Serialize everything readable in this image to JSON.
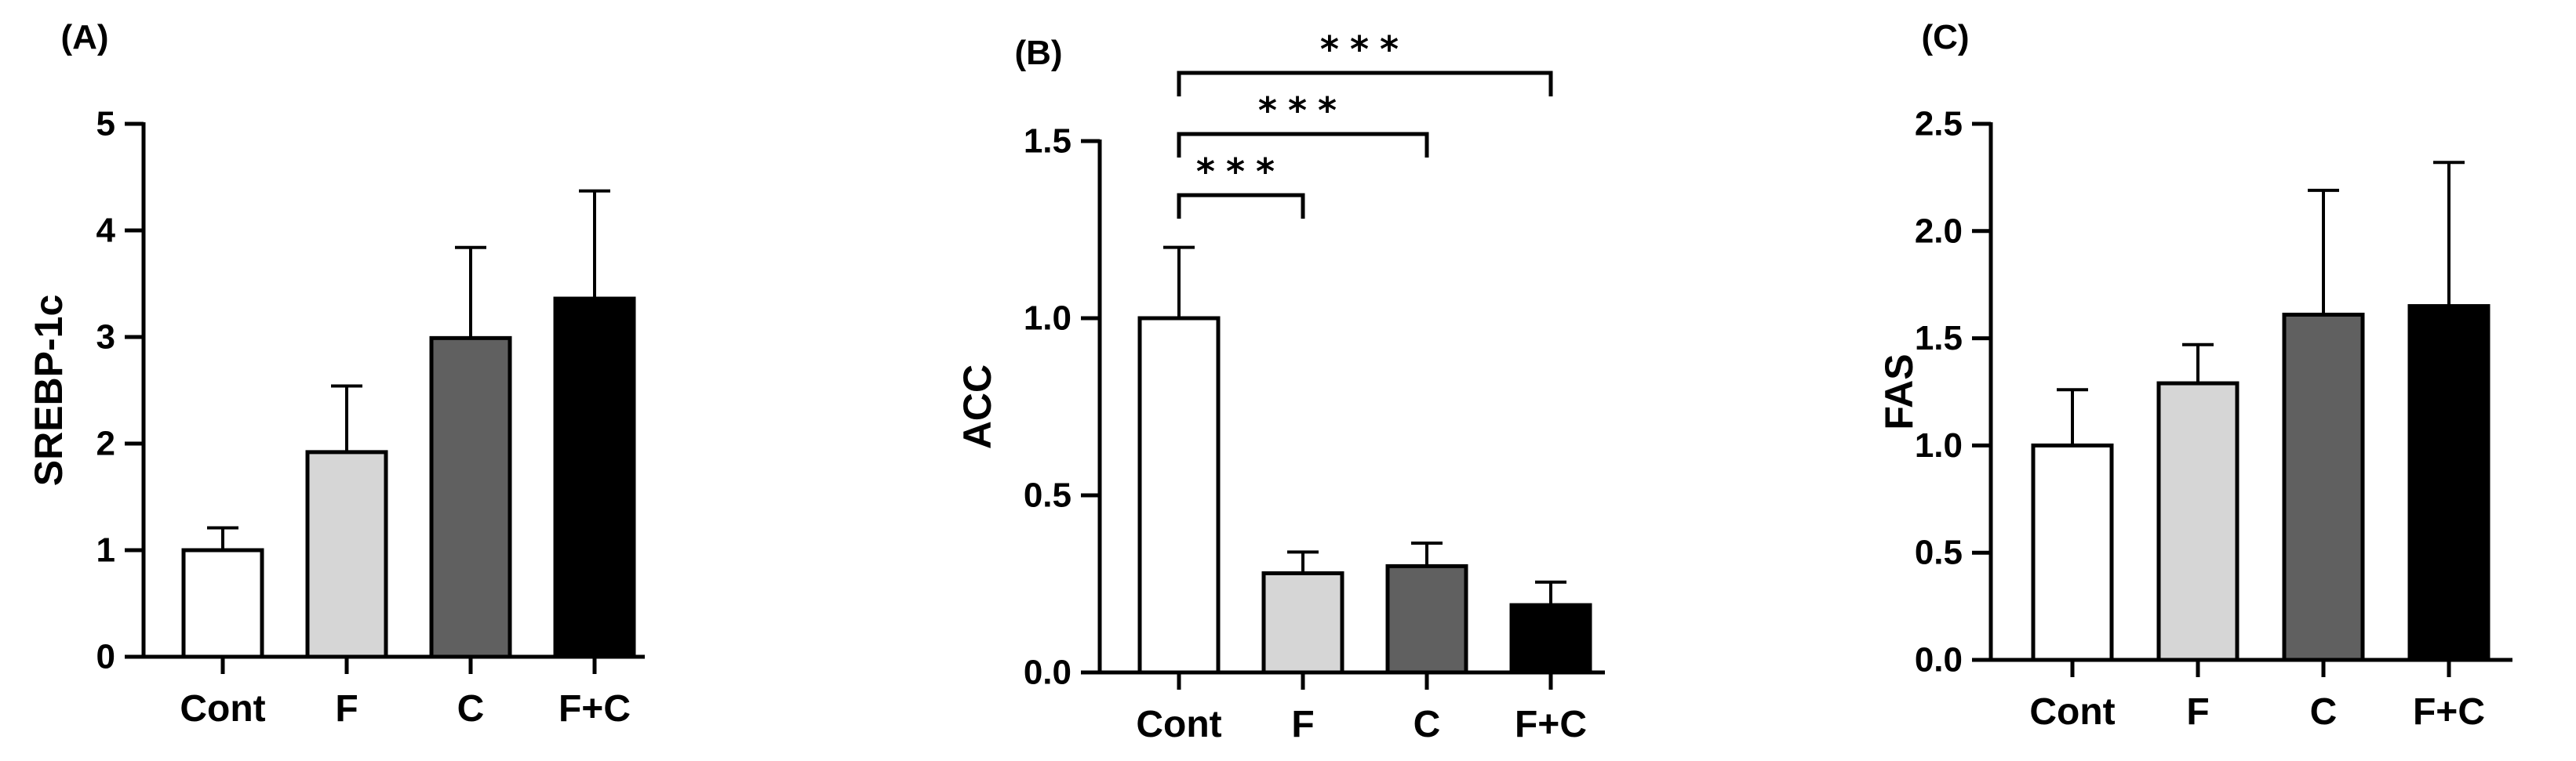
{
  "chart_data": [
    {
      "type": "bar",
      "panel_label": "(A)",
      "title": "",
      "xlabel": "",
      "ylabel": "SREBP-1c",
      "categories": [
        "Cont",
        "F",
        "C",
        "F+C"
      ],
      "values": [
        1.0,
        1.92,
        2.99,
        3.36
      ],
      "errors": [
        0.21,
        0.62,
        0.85,
        1.01
      ],
      "bar_colors": [
        "#ffffff",
        "#d6d6d6",
        "#606060",
        "#000000"
      ],
      "ylim": [
        0,
        5
      ],
      "yticks": [
        0,
        1,
        2,
        3,
        4,
        5
      ],
      "ytick_labels": [
        "0",
        "1",
        "2",
        "3",
        "4",
        "5"
      ],
      "grid": false,
      "significance": []
    },
    {
      "type": "bar",
      "panel_label": "(B)",
      "title": "",
      "xlabel": "",
      "ylabel": "ACC",
      "categories": [
        "Cont",
        "F",
        "C",
        "F+C"
      ],
      "values": [
        1.0,
        0.28,
        0.3,
        0.19
      ],
      "errors": [
        0.2,
        0.06,
        0.065,
        0.065
      ],
      "bar_colors": [
        "#ffffff",
        "#d6d6d6",
        "#606060",
        "#000000"
      ],
      "ylim": [
        0,
        1.5
      ],
      "yticks": [
        0,
        0.5,
        1.0,
        1.5
      ],
      "ytick_labels": [
        "0.0",
        "0.5",
        "1.0",
        "1.5"
      ],
      "grid": false,
      "significance": [
        {
          "from": 0,
          "to": 1,
          "label": "***"
        },
        {
          "from": 0,
          "to": 2,
          "label": "***"
        },
        {
          "from": 0,
          "to": 3,
          "label": "***"
        }
      ]
    },
    {
      "type": "bar",
      "panel_label": "(C)",
      "title": "",
      "xlabel": "",
      "ylabel": "FAS",
      "categories": [
        "Cont",
        "F",
        "C",
        "F+C"
      ],
      "values": [
        1.0,
        1.29,
        1.61,
        1.65
      ],
      "errors": [
        0.26,
        0.18,
        0.58,
        0.67
      ],
      "bar_colors": [
        "#ffffff",
        "#d6d6d6",
        "#606060",
        "#000000"
      ],
      "ylim": [
        0,
        2.5
      ],
      "yticks": [
        0,
        0.5,
        1.0,
        1.5,
        2.0,
        2.5
      ],
      "ytick_labels": [
        "0.0",
        "0.5",
        "1.0",
        "1.5",
        "2.0",
        "2.5"
      ],
      "grid": false,
      "significance": []
    }
  ]
}
